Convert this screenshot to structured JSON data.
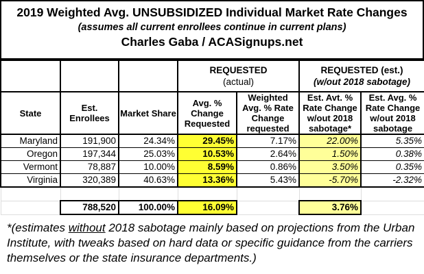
{
  "title": {
    "line1": "2019 Weighted Avg. UNSUBSIDIZED Individual Market Rate Changes",
    "line2": "(assumes all current enrollees continue in current plans)",
    "line3": "Charles Gaba / ACASignups.net"
  },
  "groups": {
    "requested": "REQUESTED",
    "requested_sub": "(actual)",
    "est": "REQUESTED (est.)",
    "est_sub": "(w/out 2018 sabotage)"
  },
  "headers": [
    "State",
    "Est. Enrollees",
    "Market Share",
    "Avg. % Change Requested",
    "Weighted Avg. % Rate Change requested",
    "Est. Avt. % Rate Change w/out 2018 sabotage",
    "Est. Avg. % Rate Change w/out 2018 sabotage"
  ],
  "asterisk": "*",
  "rows": [
    [
      "Maryland",
      "191,900",
      "24.34%",
      "29.45%",
      "7.17%",
      "22.00%",
      "5.35%"
    ],
    [
      "Oregon",
      "197,344",
      "25.03%",
      "10.53%",
      "2.64%",
      "1.50%",
      "0.38%"
    ],
    [
      "Vermont",
      "78,887",
      "10.00%",
      "8.59%",
      "0.86%",
      "3.50%",
      "0.35%"
    ],
    [
      "Virginia",
      "320,389",
      "40.63%",
      "13.36%",
      "5.43%",
      "-5.70%",
      "-2.32%"
    ]
  ],
  "totals": {
    "enrollees": "788,520",
    "share": "100.00%",
    "avg_requested": "16.09%",
    "avg_est": "3.76%"
  },
  "footnote": {
    "pre": "*(estimates ",
    "underlined": "without",
    "post": " 2018 sabotage mainly based on projections from the Urban Institute, with tweaks based on hard data or specific guidance from the carriers themselves or the state insurance departments.)"
  },
  "colors": {
    "highlight": "#ffff33",
    "light_highlight": "#ffff99"
  }
}
